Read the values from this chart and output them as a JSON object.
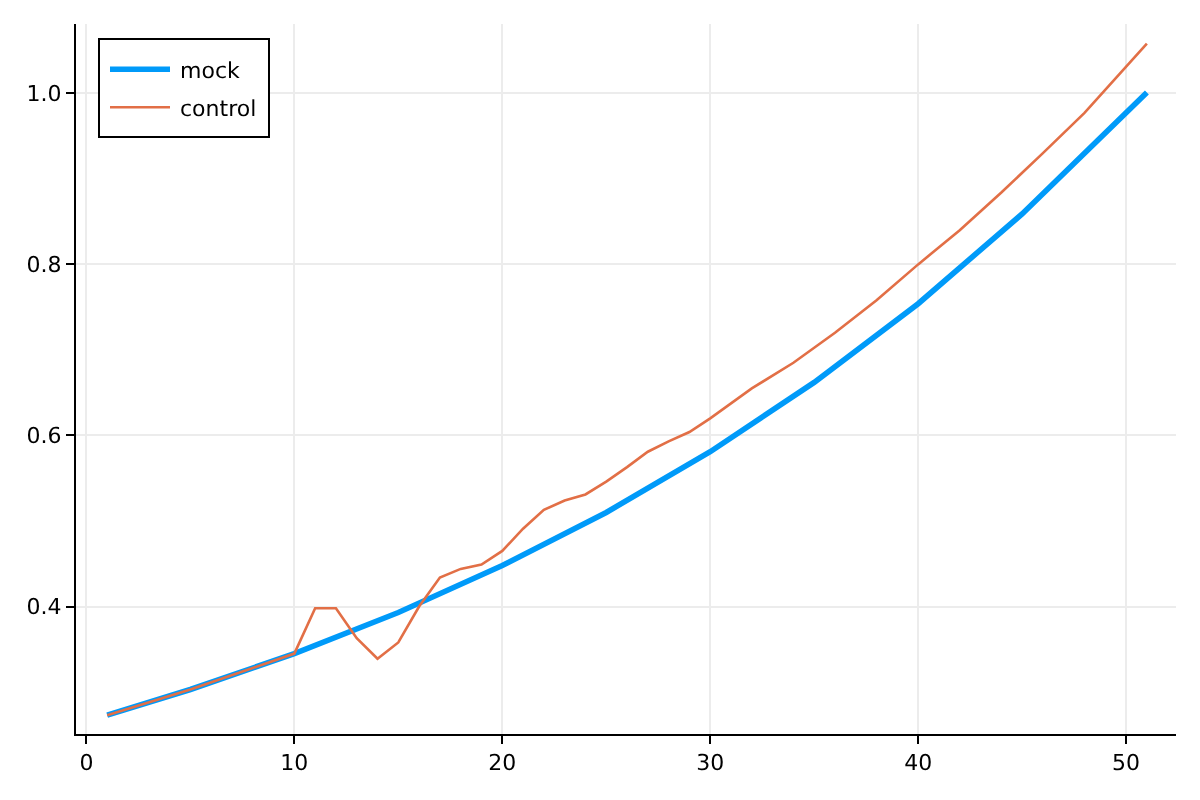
{
  "chart_data": {
    "type": "line",
    "xlim": [
      -0.5,
      52.4
    ],
    "ylim": [
      0.251,
      1.081
    ],
    "xticks": [
      0,
      10,
      20,
      30,
      40,
      50
    ],
    "yticks": [
      {
        "value": 0.4,
        "label": "0.4"
      },
      {
        "value": 0.6,
        "label": "0.6"
      },
      {
        "value": 0.8,
        "label": "0.8"
      },
      {
        "value": 1.0,
        "label": "1.0"
      }
    ],
    "grid": true,
    "legend": "top left",
    "marker": "none",
    "line_style": "solid",
    "series": [
      {
        "name": "mock",
        "color": "#009af9",
        "x": [
          1,
          5,
          10,
          15,
          20,
          25,
          30,
          35,
          40,
          45,
          51
        ],
        "values": [
          0.273,
          0.303,
          0.345,
          0.393,
          0.448,
          0.51,
          0.581,
          0.662,
          0.754,
          0.859,
          1.001
        ]
      },
      {
        "name": "control",
        "color": "#e26f46",
        "x": [
          1,
          5,
          10,
          11,
          12,
          13,
          14,
          15,
          16,
          17,
          18,
          19,
          20,
          21,
          22,
          23,
          24,
          25,
          26,
          27,
          28,
          29,
          30,
          32,
          34,
          36,
          38,
          40,
          42,
          44,
          46,
          48,
          51
        ],
        "values": [
          0.273,
          0.303,
          0.345,
          0.398,
          0.398,
          0.363,
          0.339,
          0.358,
          0.4,
          0.434,
          0.444,
          0.449,
          0.465,
          0.491,
          0.513,
          0.524,
          0.531,
          0.546,
          0.563,
          0.581,
          0.593,
          0.604,
          0.62,
          0.655,
          0.685,
          0.72,
          0.758,
          0.8,
          0.84,
          0.884,
          0.93,
          0.977,
          1.058
        ]
      }
    ]
  }
}
